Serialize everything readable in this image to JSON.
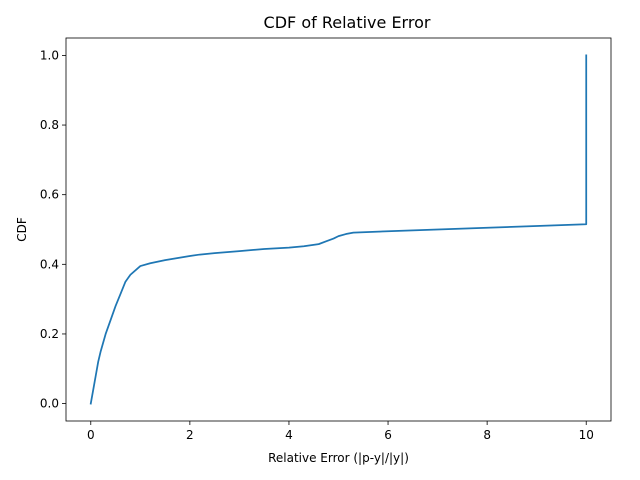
{
  "chart_data": {
    "type": "line",
    "title": "CDF of Relative Error",
    "xlabel": "Relative Error (|p-y|/|y|)",
    "ylabel": "CDF",
    "xlim": [
      -0.5,
      10.5
    ],
    "ylim": [
      -0.05,
      1.05
    ],
    "xticks": [
      0,
      2,
      4,
      6,
      8,
      10
    ],
    "xtick_labels": [
      "0",
      "2",
      "4",
      "6",
      "8",
      "10"
    ],
    "yticks": [
      0.0,
      0.2,
      0.4,
      0.6,
      0.8,
      1.0
    ],
    "ytick_labels": [
      "0.0",
      "0.2",
      "0.4",
      "0.6",
      "0.8",
      "1.0"
    ],
    "grid": false,
    "series": [
      {
        "color": "#1f77b4",
        "x": [
          0.0,
          0.05,
          0.1,
          0.15,
          0.2,
          0.3,
          0.4,
          0.5,
          0.6,
          0.7,
          0.8,
          1.0,
          1.2,
          1.5,
          2.0,
          2.2,
          2.5,
          3.0,
          3.5,
          4.0,
          4.3,
          4.6,
          4.75,
          4.9,
          5.0,
          5.15,
          5.3,
          6.0,
          7.0,
          8.0,
          9.0,
          9.99,
          10.0,
          10.0
        ],
        "y": [
          0.0,
          0.04,
          0.08,
          0.12,
          0.15,
          0.2,
          0.24,
          0.28,
          0.315,
          0.35,
          0.37,
          0.395,
          0.403,
          0.412,
          0.424,
          0.428,
          0.432,
          0.438,
          0.444,
          0.448,
          0.452,
          0.458,
          0.466,
          0.474,
          0.481,
          0.487,
          0.491,
          0.495,
          0.5,
          0.505,
          0.51,
          0.515,
          0.515,
          1.0
        ]
      }
    ]
  }
}
